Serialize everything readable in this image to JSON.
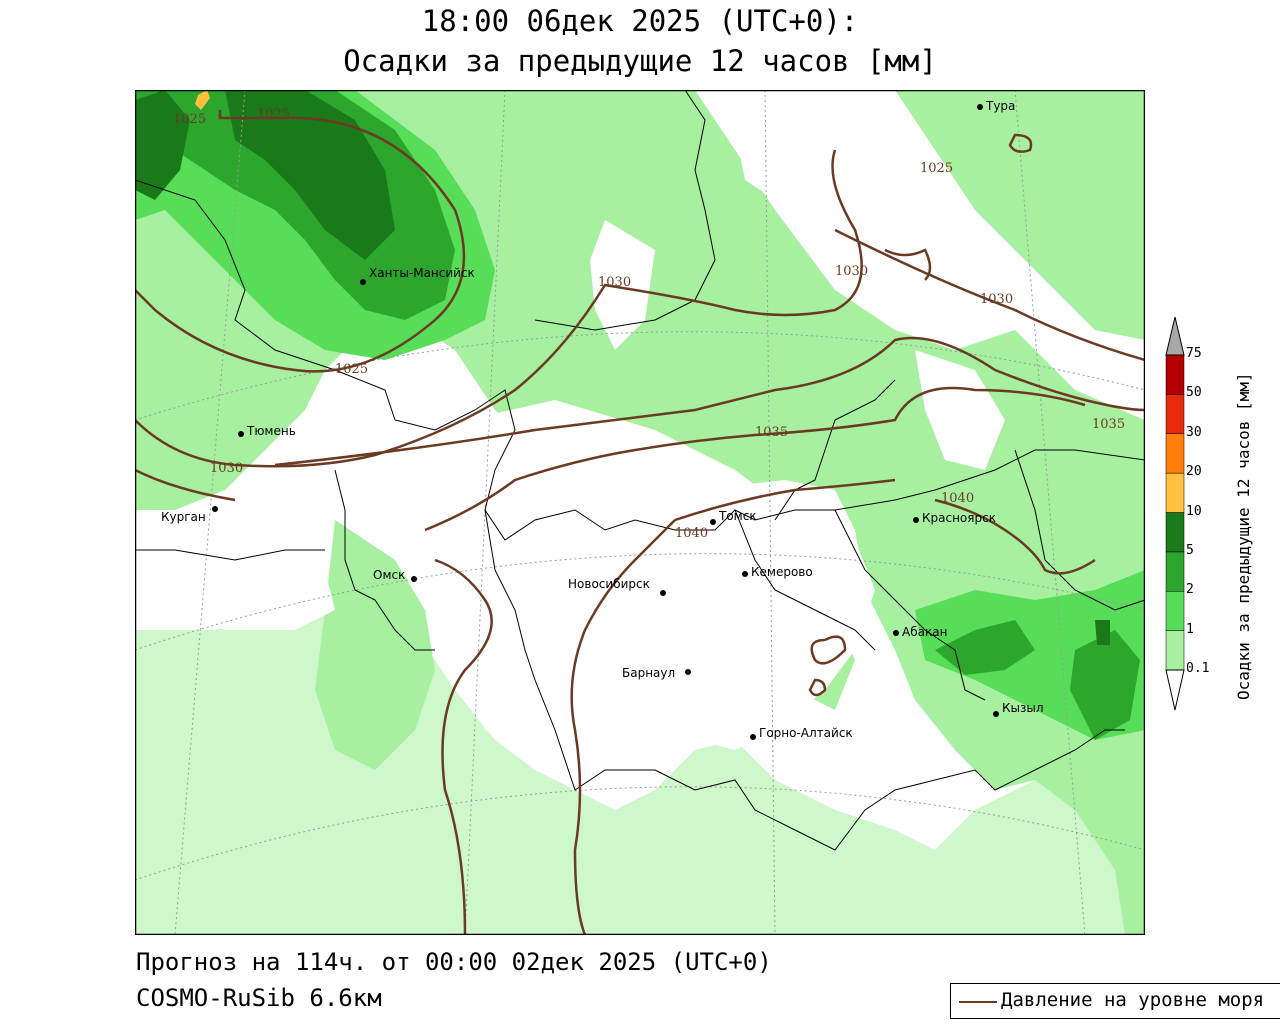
{
  "title": {
    "line1": "18:00 06дек 2025 (UTC+0):",
    "line2": "Осадки за предыдущие 12 часов [мм]"
  },
  "footer": {
    "forecast": "Прогноз на 114ч. от 00:00 02дек 2025 (UTC+0)",
    "model": "COSMO-RuSib 6.6км"
  },
  "legend": {
    "pressure_label": "Давление на уровне моря",
    "pressure_color": "#6b3a22"
  },
  "colorbar": {
    "title": "Осадки за предыдущие 12 часов [мм]",
    "ticks": [
      "0.1",
      "1",
      "2",
      "5",
      "10",
      "20",
      "30",
      "50",
      "75"
    ],
    "colors": [
      "#a6f0a0",
      "#57dd57",
      "#2ca62c",
      "#1a7a1a",
      "#ffc040",
      "#ff7f0a",
      "#e82a0a",
      "#b40000",
      "#a8a8a8"
    ]
  },
  "cities": [
    {
      "name": "Тура"
    },
    {
      "name": "Ханты-Мансийск"
    },
    {
      "name": "Тюмень"
    },
    {
      "name": "Курган"
    },
    {
      "name": "Омск"
    },
    {
      "name": "Новосибирск"
    },
    {
      "name": "Томск"
    },
    {
      "name": "Кемерово"
    },
    {
      "name": "Барнаул"
    },
    {
      "name": "Горно-Алтайск"
    },
    {
      "name": "Красноярск"
    },
    {
      "name": "Абакан"
    },
    {
      "name": "Кызыл"
    }
  ],
  "isobars": [
    "1025",
    "1025",
    "1025",
    "1025",
    "1030",
    "1030",
    "1030",
    "1030",
    "1035",
    "1035",
    "1040",
    "1040"
  ]
}
